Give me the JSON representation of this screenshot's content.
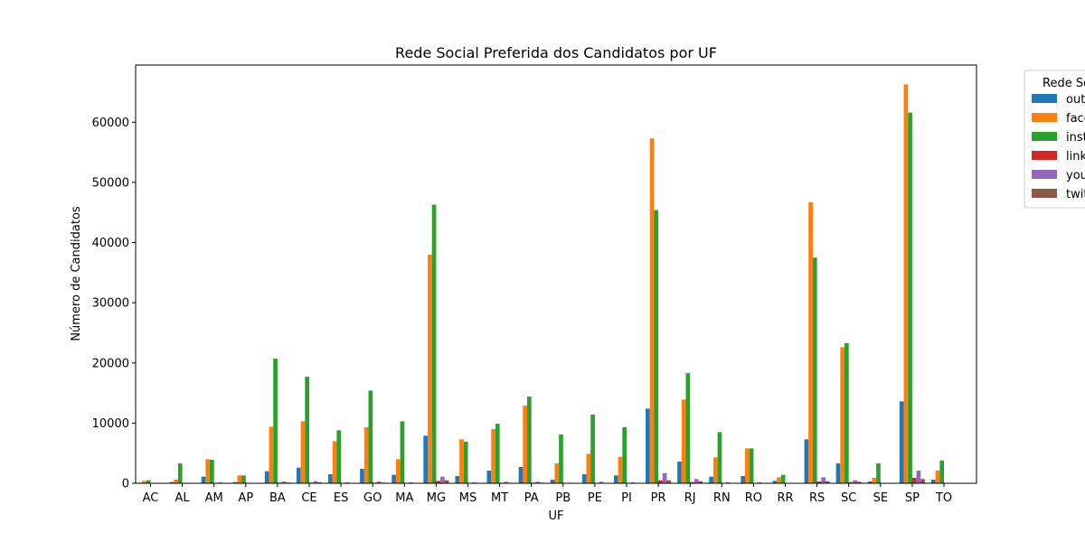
{
  "chart_data": {
    "type": "bar",
    "title": "Rede Social Preferida dos Candidatos por UF",
    "xlabel": "UF",
    "ylabel": "Número de Candidatos",
    "ylim": [
      0,
      69500
    ],
    "yticks": [
      0,
      10000,
      20000,
      30000,
      40000,
      50000,
      60000
    ],
    "legend_title": "Rede Social",
    "legend_placement": "outside top-right",
    "categories": [
      "AC",
      "AL",
      "AM",
      "AP",
      "BA",
      "CE",
      "ES",
      "GO",
      "MA",
      "MG",
      "MS",
      "MT",
      "PA",
      "PB",
      "PE",
      "PI",
      "PR",
      "RJ",
      "RN",
      "RO",
      "RR",
      "RS",
      "SC",
      "SE",
      "SP",
      "TO"
    ],
    "series": [
      {
        "name": "outros",
        "color": "#1f77b4",
        "values": [
          100,
          200,
          1100,
          200,
          2000,
          2600,
          1500,
          2400,
          1400,
          7900,
          1200,
          2100,
          2700,
          600,
          1500,
          1300,
          12400,
          3600,
          1100,
          1200,
          400,
          7300,
          3300,
          300,
          13600,
          600
        ]
      },
      {
        "name": "facebook",
        "color": "#ff7f0e",
        "values": [
          400,
          600,
          4000,
          1300,
          9400,
          10300,
          7000,
          9300,
          4000,
          38000,
          7300,
          9000,
          12900,
          3300,
          4900,
          4400,
          57300,
          13900,
          4300,
          5800,
          1000,
          46700,
          22600,
          900,
          66300,
          2100
        ]
      },
      {
        "name": "instagram",
        "color": "#2ca02c",
        "values": [
          500,
          3300,
          3900,
          1300,
          20700,
          17700,
          8800,
          15400,
          10300,
          46300,
          6900,
          9900,
          14400,
          8100,
          11400,
          9300,
          45400,
          18300,
          8500,
          5800,
          1400,
          37500,
          23300,
          3300,
          61600,
          3800
        ]
      },
      {
        "name": "linkedin",
        "color": "#d62728",
        "values": [
          10,
          30,
          60,
          20,
          100,
          100,
          60,
          100,
          50,
          400,
          60,
          80,
          100,
          40,
          60,
          50,
          500,
          200,
          50,
          40,
          20,
          300,
          200,
          20,
          900,
          40
        ]
      },
      {
        "name": "youtube",
        "color": "#9467bd",
        "values": [
          20,
          60,
          150,
          40,
          300,
          350,
          150,
          300,
          150,
          1100,
          150,
          250,
          250,
          90,
          250,
          150,
          1700,
          700,
          150,
          150,
          40,
          1000,
          500,
          60,
          2100,
          60
        ]
      },
      {
        "name": "twitter",
        "color": "#8c564b",
        "values": [
          10,
          20,
          50,
          10,
          120,
          150,
          60,
          100,
          50,
          500,
          50,
          90,
          100,
          30,
          80,
          60,
          500,
          350,
          50,
          50,
          10,
          350,
          250,
          20,
          700,
          30
        ]
      }
    ]
  }
}
